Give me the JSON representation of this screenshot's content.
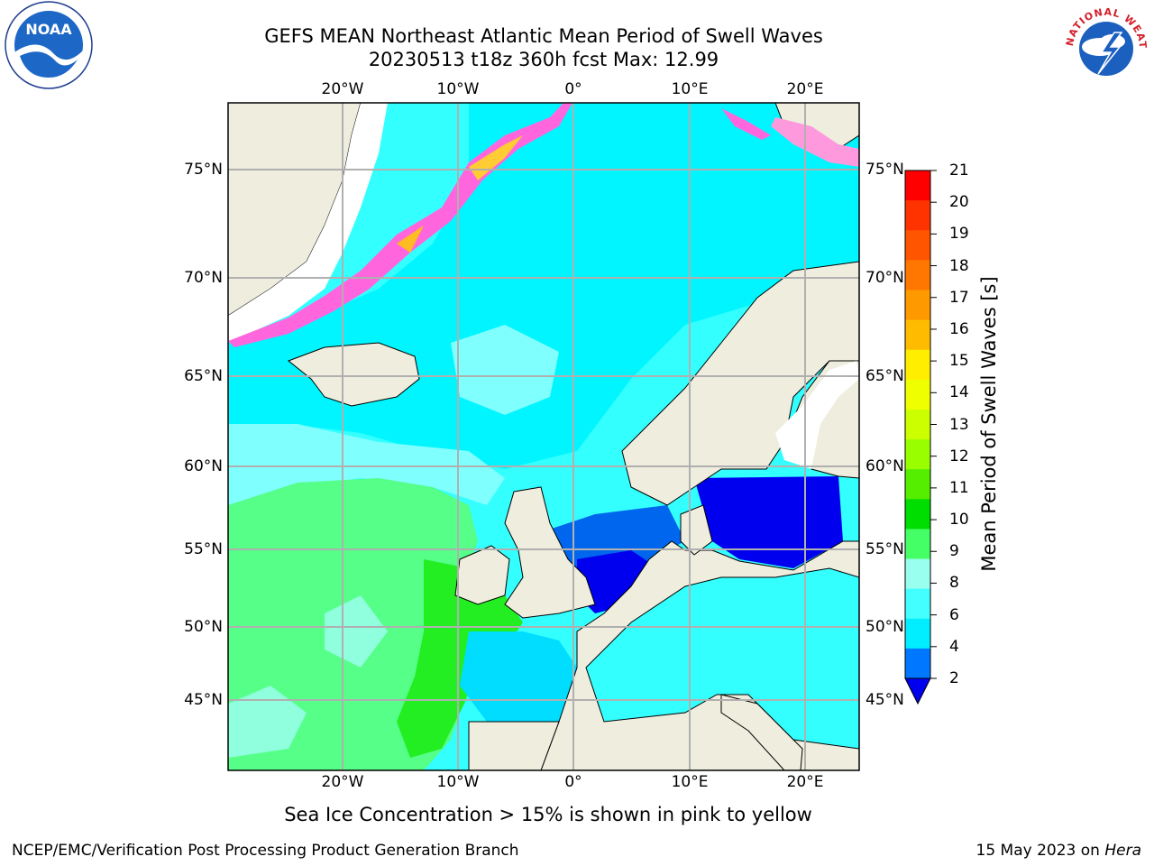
{
  "title": {
    "line1": "GEFS MEAN Northeast Atlantic Mean Period of Swell Waves",
    "line2": "20230513 t18z 360h fcst   Max: 12.99"
  },
  "axes": {
    "lon_labels": [
      "20°W",
      "10°W",
      "0°",
      "10°E",
      "20°E"
    ],
    "lat_labels": [
      "75°N",
      "70°N",
      "65°N",
      "60°N",
      "55°N",
      "50°N",
      "45°N"
    ]
  },
  "colorbar": {
    "label": "Mean Period of Swell Waves [s]",
    "ticks": [
      "21",
      "20",
      "19",
      "18",
      "17",
      "16",
      "15",
      "14",
      "13",
      "12",
      "11",
      "10",
      "9",
      "8",
      "6",
      "4",
      "2"
    ],
    "colors": [
      "#ff0000",
      "#ff3300",
      "#ff5500",
      "#ff7700",
      "#ff9900",
      "#ffbb00",
      "#ffee00",
      "#f0ff00",
      "#ccff00",
      "#99ff00",
      "#55ee00",
      "#00dd00",
      "#44ff66",
      "#99ffee",
      "#44ffff",
      "#00eeff",
      "#0077ff"
    ],
    "extend_color": "#0000ee"
  },
  "notes": {
    "ice": "Sea Ice Concentration > 15% is shown in pink to yellow"
  },
  "footer": {
    "left": "NCEP/EMC/Verification Post Processing Product Generation Branch",
    "date": "15 May 2023 on ",
    "host": "Hera"
  },
  "logos": {
    "noaa_text": "NOAA",
    "nws_text": "NATIONAL WEATHER SERVICE"
  }
}
